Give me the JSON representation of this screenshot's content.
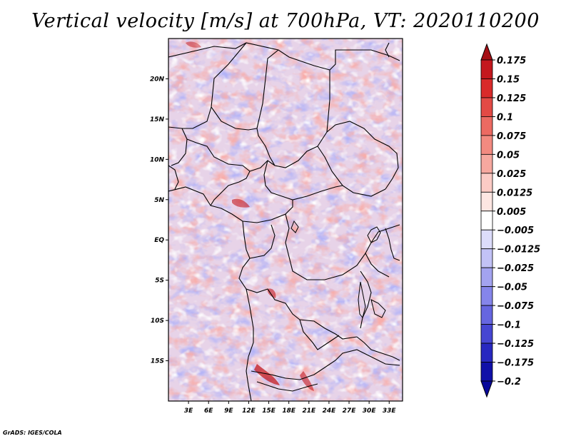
{
  "title": "Vertical velocity [m/s] at 700hPa, VT: 2020110200",
  "credit": "GrADS: IGES/COLA",
  "map": {
    "lat_ticks": [
      "20N",
      "15N",
      "10N",
      "5N",
      "EQ",
      "5S",
      "10S",
      "15S"
    ],
    "lat_values": [
      20,
      15,
      10,
      5,
      0,
      -5,
      -10,
      -15
    ],
    "lon_ticks": [
      "3E",
      "6E",
      "9E",
      "12E",
      "15E",
      "18E",
      "21E",
      "24E",
      "27E",
      "30E",
      "33E"
    ],
    "lon_values": [
      3,
      6,
      9,
      12,
      15,
      18,
      21,
      24,
      27,
      30,
      33
    ],
    "lat_range": [
      -20,
      25
    ],
    "lon_range": [
      0,
      35
    ]
  },
  "colorbar": {
    "labels": [
      "0.175",
      "0.15",
      "0.125",
      "0.1",
      "0.075",
      "0.05",
      "0.025",
      "0.0125",
      "0.005",
      "−0.005",
      "−0.0125",
      "−0.025",
      "−0.05",
      "−0.075",
      "−0.1",
      "−0.125",
      "−0.175",
      "−0.2"
    ],
    "colors": [
      "#a50f15",
      "#c4181e",
      "#d92a2a",
      "#e34a45",
      "#ec6a62",
      "#f28a80",
      "#f6a89f",
      "#fbcbc5",
      "#fde6e2",
      "#ffffff",
      "#dcdcfb",
      "#c2c2f6",
      "#a3a3f0",
      "#8585ea",
      "#6666e0",
      "#4646d2",
      "#2828c0",
      "#1010a8",
      "#08089a"
    ]
  }
}
